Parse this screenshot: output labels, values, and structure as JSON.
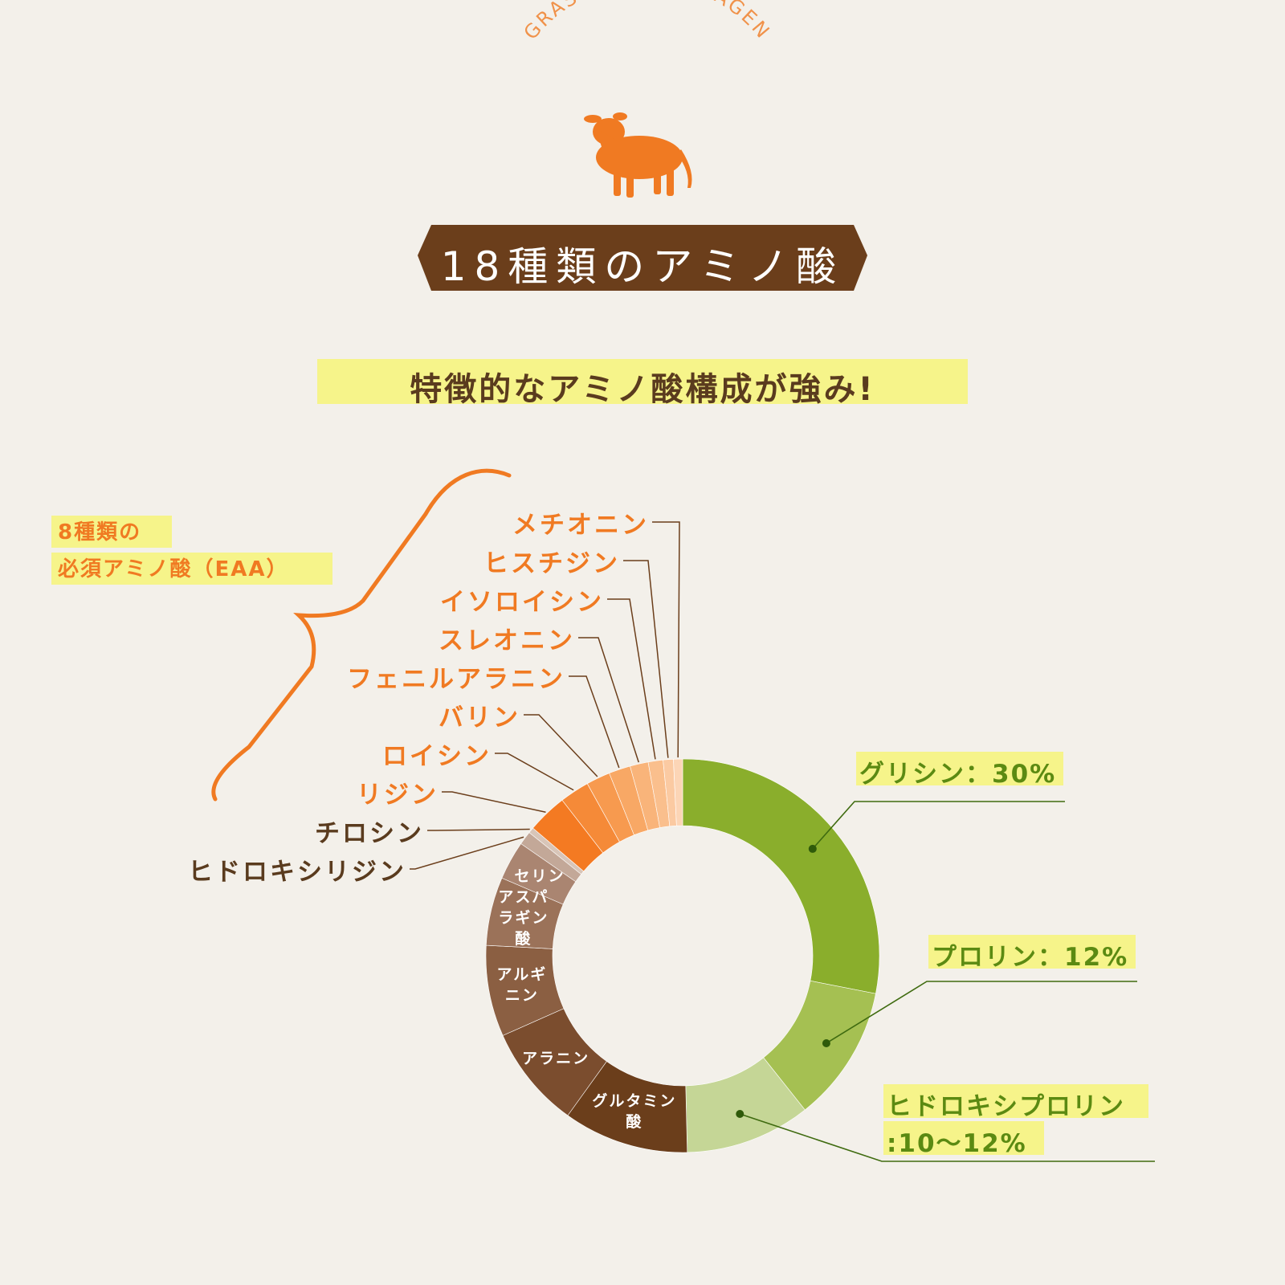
{
  "header": {
    "arc_text": "GRASS-FED COLLAGEN",
    "banner_title": "18種類のアミノ酸",
    "subtitle": "特徴的なアミノ酸構成が強み!"
  },
  "eaa_callout": {
    "line1": "8種類の",
    "line2": "必須アミノ酸（EAA）"
  },
  "colors": {
    "background": "#f3f0ea",
    "banner": "#6b3e1b",
    "highlight": "#f6f48a",
    "accent_orange": "#f07a22",
    "green_dark": "#8aae2c",
    "green_light": "#c5d696",
    "brown_dark": "#6b3e1b"
  },
  "chart_data": {
    "type": "pie",
    "variant": "donut",
    "slices": [
      {
        "label": "グリシン",
        "value": 30,
        "color": "#8aae2c",
        "callout": "グリシン：30%"
      },
      {
        "label": "プロリン",
        "value": 12,
        "color": "#a5c052",
        "callout": "プロリン：12%"
      },
      {
        "label": "ヒドロキシプロリン",
        "value": 11,
        "color": "#c5d696",
        "callout_line1": "ヒドロキシプロリン",
        "callout_line2": ":10〜12%"
      },
      {
        "label": "グルタミン酸",
        "value": 11,
        "color": "#6b3e1b",
        "inner_label": [
          "グルタミン",
          "酸"
        ]
      },
      {
        "label": "アラニン",
        "value": 9,
        "color": "#7b4d2e",
        "inner_label": [
          "アラニン"
        ]
      },
      {
        "label": "アルギニン",
        "value": 8,
        "color": "#8b5f42",
        "inner_label": [
          "アルギ",
          "ニン"
        ]
      },
      {
        "label": "アスパラギン酸",
        "value": 6,
        "color": "#9b7259",
        "inner_label": [
          "アスパ",
          "ラギン",
          "酸"
        ]
      },
      {
        "label": "セリン",
        "value": 3.4,
        "color": "#aa8571",
        "inner_label": [
          "セリン"
        ]
      },
      {
        "label": "ヒドロキシリジン",
        "value": 1.2,
        "color": "#c3a898",
        "outer_label": "ヒドロキシリジン",
        "group": "brown"
      },
      {
        "label": "チロシン",
        "value": 0.5,
        "color": "#d8c5b8",
        "outer_label": "チロシン",
        "group": "brown"
      },
      {
        "label": "リジン",
        "value": 3.5,
        "color": "#f47a22",
        "outer_label": "リジン",
        "group": "eaa"
      },
      {
        "label": "ロイシン",
        "value": 2.6,
        "color": "#f58a38",
        "outer_label": "ロイシン",
        "group": "eaa"
      },
      {
        "label": "バリン",
        "value": 2.1,
        "color": "#f79a4f",
        "outer_label": "バリン",
        "group": "eaa"
      },
      {
        "label": "フェニルアラニン",
        "value": 1.9,
        "color": "#f8a865",
        "outer_label": "フェニルアラニン",
        "group": "eaa"
      },
      {
        "label": "スレオニン",
        "value": 1.6,
        "color": "#f9b47a",
        "outer_label": "スレオニン",
        "group": "eaa"
      },
      {
        "label": "イソロイシン",
        "value": 1.3,
        "color": "#fabf8d",
        "outer_label": "イソロイシン",
        "group": "eaa"
      },
      {
        "label": "ヒスチジン",
        "value": 0.9,
        "color": "#fbcaa2",
        "outer_label": "ヒスチジン",
        "group": "eaa"
      },
      {
        "label": "メチオニン",
        "value": 0.8,
        "color": "#fcd5b6",
        "outer_label": "メチオニン",
        "group": "eaa"
      }
    ]
  }
}
